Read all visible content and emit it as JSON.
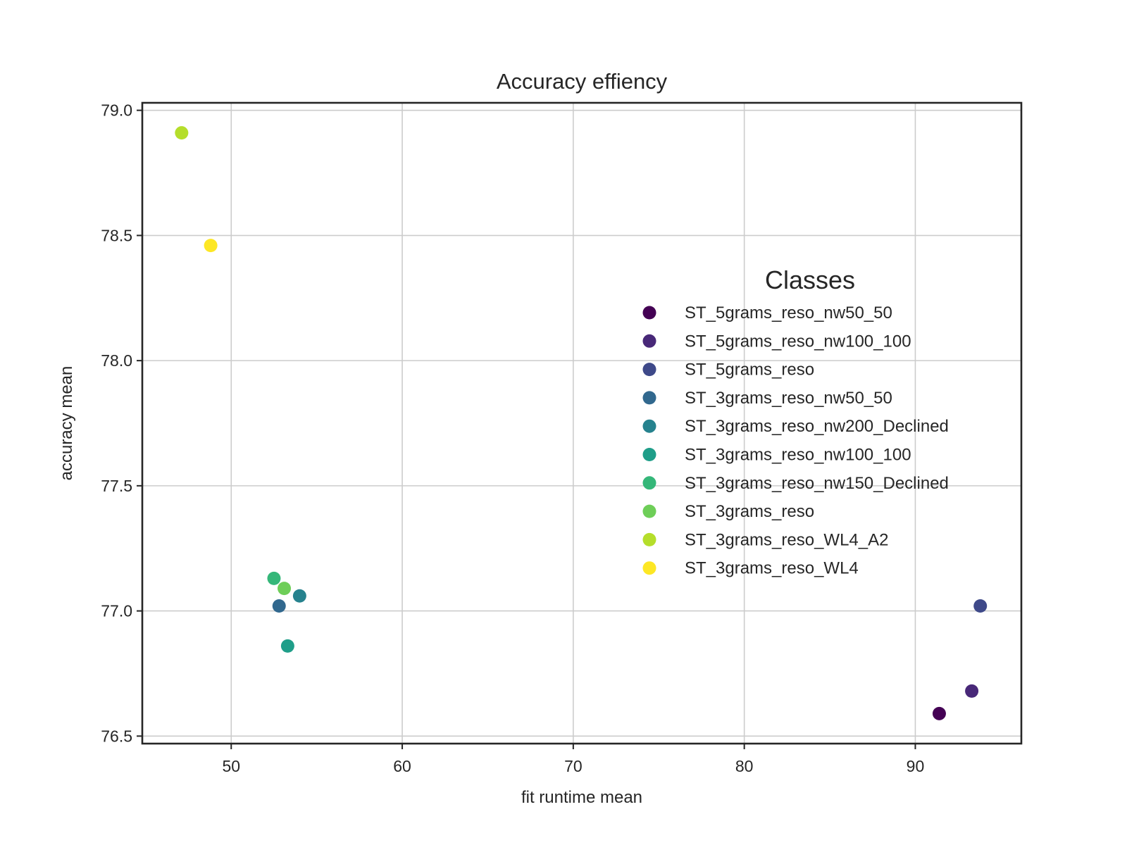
{
  "chart_data": {
    "type": "scatter",
    "title": "Accuracy effiency",
    "xlabel": "fit runtime mean",
    "ylabel": "accuracy mean",
    "xlim": [
      44.8,
      96.2
    ],
    "ylim": [
      76.47,
      79.03
    ],
    "xticks": [
      50,
      60,
      70,
      80,
      90
    ],
    "yticks": [
      76.5,
      77.0,
      77.5,
      78.0,
      78.5,
      79.0
    ],
    "xtick_labels": [
      "50",
      "60",
      "70",
      "80",
      "90"
    ],
    "ytick_labels": [
      "76.5",
      "77.0",
      "77.5",
      "78.0",
      "78.5",
      "79.0"
    ],
    "grid": true,
    "legend": {
      "title": "Classes",
      "placement": "center-right"
    },
    "series": [
      {
        "name": "ST_5grams_reso_nw50_50",
        "color": "#440154",
        "x": 91.4,
        "y": 76.59
      },
      {
        "name": "ST_5grams_reso_nw100_100",
        "color": "#482878",
        "x": 93.3,
        "y": 76.68
      },
      {
        "name": "ST_5grams_reso",
        "color": "#3e4989",
        "x": 93.8,
        "y": 77.02
      },
      {
        "name": "ST_3grams_reso_nw50_50",
        "color": "#31688e",
        "x": 52.8,
        "y": 77.02
      },
      {
        "name": "ST_3grams_reso_nw200_Declined",
        "color": "#26828e",
        "x": 54.0,
        "y": 77.06
      },
      {
        "name": "ST_3grams_reso_nw100_100",
        "color": "#1f9e89",
        "x": 53.3,
        "y": 76.86
      },
      {
        "name": "ST_3grams_reso_nw150_Declined",
        "color": "#35b779",
        "x": 52.5,
        "y": 77.13
      },
      {
        "name": "ST_3grams_reso",
        "color": "#6ece58",
        "x": 53.1,
        "y": 77.09
      },
      {
        "name": "ST_3grams_reso_WL4_A2",
        "color": "#b5de2b",
        "x": 47.1,
        "y": 78.91
      },
      {
        "name": "ST_3grams_reso_WL4",
        "color": "#fde725",
        "x": 48.8,
        "y": 78.46
      }
    ]
  }
}
